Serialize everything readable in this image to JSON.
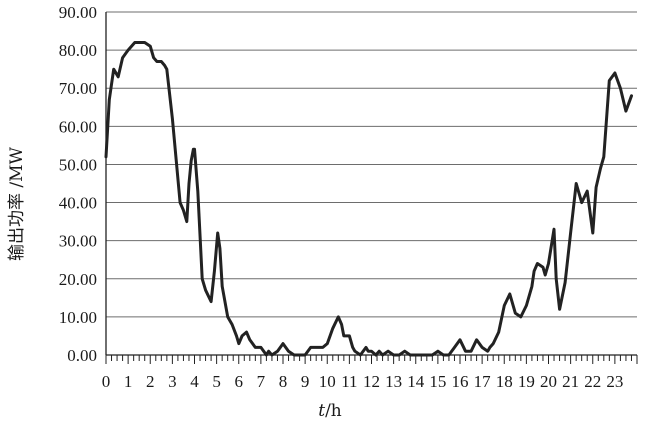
{
  "chart_data": {
    "type": "line",
    "title": "",
    "xlabel_var": "t",
    "xlabel_unit": "/h",
    "ylabel": "输出功率 /MW",
    "xlim": [
      0,
      24
    ],
    "ylim": [
      0,
      90
    ],
    "x_ticks": [
      0,
      1,
      2,
      3,
      4,
      5,
      6,
      7,
      8,
      9,
      10,
      11,
      12,
      13,
      14,
      15,
      16,
      17,
      18,
      19,
      20,
      21,
      22,
      23
    ],
    "y_ticks": [
      "0.00",
      "10.00",
      "20.00",
      "30.00",
      "40.00",
      "50.00",
      "60.00",
      "70.00",
      "80.00",
      "90.00"
    ],
    "y_tick_values": [
      0,
      10,
      20,
      30,
      40,
      50,
      60,
      70,
      80,
      90
    ],
    "grid": "horizontal",
    "series": [
      {
        "color": "#222222",
        "x": [
          0,
          0.15,
          0.35,
          0.55,
          0.75,
          1.0,
          1.3,
          1.5,
          1.75,
          2.0,
          2.15,
          2.3,
          2.5,
          2.65,
          2.75,
          3.0,
          3.35,
          3.5,
          3.65,
          3.75,
          3.85,
          3.95,
          4.0,
          4.15,
          4.35,
          4.5,
          4.75,
          4.9,
          5.05,
          5.15,
          5.25,
          5.5,
          5.7,
          5.9,
          6.0,
          6.15,
          6.35,
          6.5,
          6.75,
          7.0,
          7.25,
          7.35,
          7.5,
          7.75,
          8.0,
          8.25,
          8.5,
          8.75,
          9.0,
          9.25,
          9.5,
          9.75,
          9.8,
          10.0,
          10.25,
          10.5,
          10.65,
          10.75,
          11.0,
          11.15,
          11.25,
          11.5,
          11.75,
          11.85,
          12.0,
          12.2,
          12.35,
          12.5,
          12.75,
          13.0,
          13.25,
          13.5,
          13.75,
          13.85,
          14.0,
          14.25,
          14.5,
          14.75,
          15.0,
          15.25,
          15.5,
          15.75,
          16.0,
          16.25,
          16.5,
          16.75,
          17.0,
          17.25,
          17.35,
          17.5,
          17.75,
          18.0,
          18.25,
          18.5,
          18.75,
          19.0,
          19.25,
          19.35,
          19.5,
          19.75,
          19.85,
          20.0,
          20.25,
          20.35,
          20.5,
          20.75,
          21.0,
          21.25,
          21.5,
          21.75,
          22.0,
          22.15,
          22.35,
          22.5,
          22.75,
          23.0,
          23.25,
          23.5,
          23.75
        ],
        "y": [
          52,
          67,
          75,
          73,
          78,
          80,
          82,
          82,
          82,
          81,
          78,
          77,
          77,
          76,
          75,
          62,
          40,
          38,
          35,
          45,
          51,
          54,
          54,
          43,
          20,
          17,
          14,
          22,
          32,
          28,
          18,
          10,
          8,
          5,
          3,
          5,
          6,
          4,
          2,
          2,
          0,
          1,
          0,
          1,
          3,
          1,
          0,
          0,
          0,
          2,
          2,
          2,
          2,
          3,
          7,
          10,
          8,
          5,
          5,
          2,
          1,
          0,
          2,
          1,
          1,
          0,
          1,
          0,
          1,
          0,
          0,
          1,
          0,
          0,
          0,
          0,
          0,
          0,
          1,
          0,
          0,
          2,
          4,
          1,
          1,
          4,
          2,
          1,
          2,
          3,
          6,
          13,
          16,
          11,
          10,
          13,
          18,
          22,
          24,
          23,
          21,
          24,
          33,
          20,
          12,
          19,
          32,
          45,
          40,
          43,
          32,
          44,
          49,
          52,
          72,
          74,
          70,
          64,
          68
        ]
      }
    ]
  }
}
